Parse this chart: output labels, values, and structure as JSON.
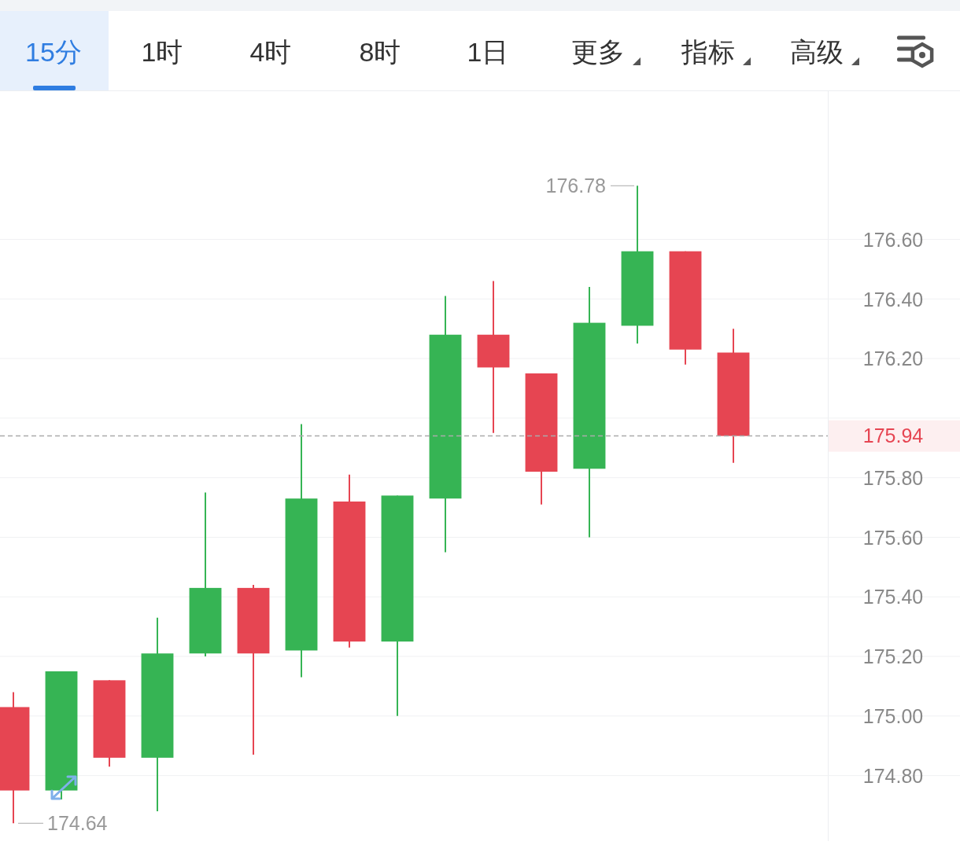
{
  "chart_data": {
    "type": "candlestick",
    "categories": [
      null,
      null,
      null,
      null,
      null,
      null,
      null,
      null,
      null,
      null,
      null,
      null,
      null,
      null,
      null,
      null
    ],
    "ohlc": [
      [
        175.03,
        175.08,
        174.64,
        174.75
      ],
      [
        174.75,
        175.15,
        174.72,
        175.15
      ],
      [
        175.12,
        175.12,
        174.83,
        174.86
      ],
      [
        174.86,
        175.33,
        174.68,
        175.21
      ],
      [
        175.21,
        175.75,
        175.2,
        175.43
      ],
      [
        175.43,
        175.44,
        174.87,
        175.21
      ],
      [
        175.22,
        175.98,
        175.13,
        175.73
      ],
      [
        175.72,
        175.81,
        175.23,
        175.25
      ],
      [
        175.25,
        175.74,
        175.0,
        175.74
      ],
      [
        175.73,
        176.41,
        175.55,
        176.28
      ],
      [
        176.28,
        176.46,
        175.95,
        176.17
      ],
      [
        176.15,
        176.15,
        175.71,
        175.82
      ],
      [
        175.83,
        176.44,
        175.6,
        176.32
      ],
      [
        176.31,
        176.78,
        176.25,
        176.56
      ],
      [
        176.56,
        176.56,
        176.18,
        176.23
      ],
      [
        176.22,
        176.3,
        175.85,
        175.94
      ]
    ],
    "colors": [
      "#e64552",
      "#36b454",
      "#e64552",
      "#36b454",
      "#36b454",
      "#e64552",
      "#36b454",
      "#e64552",
      "#36b454",
      "#36b454",
      "#e64552",
      "#e64552",
      "#36b454",
      "#36b454",
      "#e64552",
      "#e64552"
    ],
    "ylim": [
      174.58,
      177.1
    ],
    "yticks": [
      {
        "value": 174.8,
        "label": "174.80"
      },
      {
        "value": 175.0,
        "label": "175.00"
      },
      {
        "value": 175.2,
        "label": "175.20"
      },
      {
        "value": 175.4,
        "label": "175.40"
      },
      {
        "value": 175.6,
        "label": "175.60"
      },
      {
        "value": 175.8,
        "label": "175.80"
      },
      {
        "value": 176.0,
        "label": null
      },
      {
        "value": 176.2,
        "label": "176.20"
      },
      {
        "value": 176.4,
        "label": "176.40"
      },
      {
        "value": 176.6,
        "label": "176.60"
      }
    ],
    "grid": "y",
    "ref_lines": [
      {
        "axis": "y",
        "value": 175.94,
        "label": "175.94",
        "color": "#aaaaaa",
        "line_style": "dashed"
      }
    ],
    "annotations": [
      "15分",
      "1时",
      "4时",
      "8时",
      "1日",
      "更多",
      "指标",
      "高级",
      "176.78",
      "174.64"
    ]
  }
}
